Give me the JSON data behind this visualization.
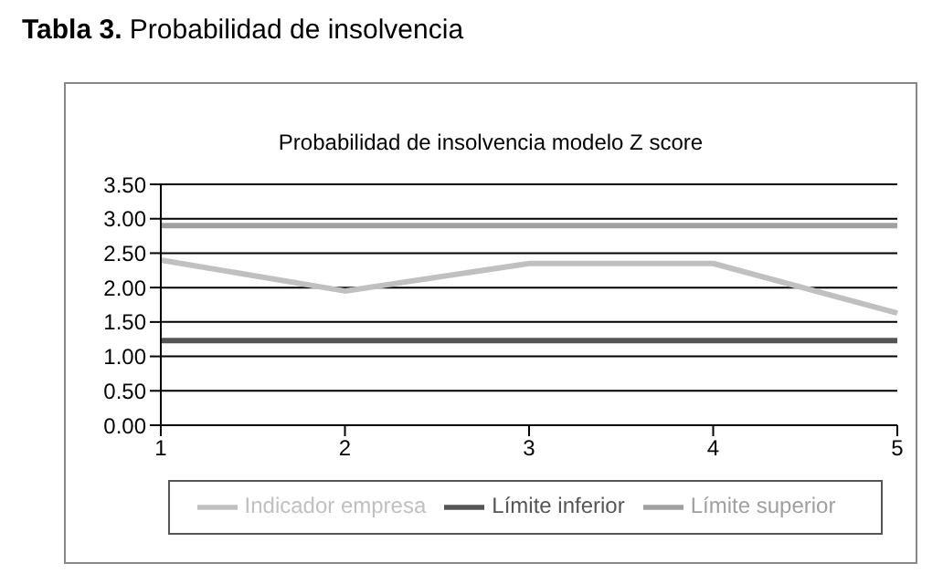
{
  "chart_data": {
    "type": "line",
    "title": "Tabla 3. Probabilidad de insolvencia",
    "subtitle": "Probabilidad de insolvencia modelo Z score",
    "categories": [
      "1",
      "2",
      "3",
      "4",
      "5"
    ],
    "series": [
      {
        "name": "Indicador empresa",
        "color": "#c0c0c0",
        "values": [
          2.4,
          1.95,
          2.35,
          2.35,
          1.63
        ]
      },
      {
        "name": "Límite inferior",
        "color": "#555555",
        "values": [
          1.23,
          1.23,
          1.23,
          1.23,
          1.23
        ]
      },
      {
        "name": "Límite superior",
        "color": "#a0a0a0",
        "values": [
          2.9,
          2.9,
          2.9,
          2.9,
          2.9
        ]
      }
    ],
    "ylim": [
      0,
      3.5
    ],
    "yticks": [
      {
        "value": 0,
        "label": "0.00"
      },
      {
        "value": 0.5,
        "label": "0.50"
      },
      {
        "value": 1,
        "label": "1.00"
      },
      {
        "value": 1.5,
        "label": "1.50"
      },
      {
        "value": 2,
        "label": "2.00"
      },
      {
        "value": 2.5,
        "label": "2.50"
      },
      {
        "value": 3,
        "label": "3.00"
      },
      {
        "value": 3.5,
        "label": "3.50"
      }
    ],
    "grid": "y",
    "legend": "bottom",
    "marker": "none",
    "line_style": "solid"
  }
}
